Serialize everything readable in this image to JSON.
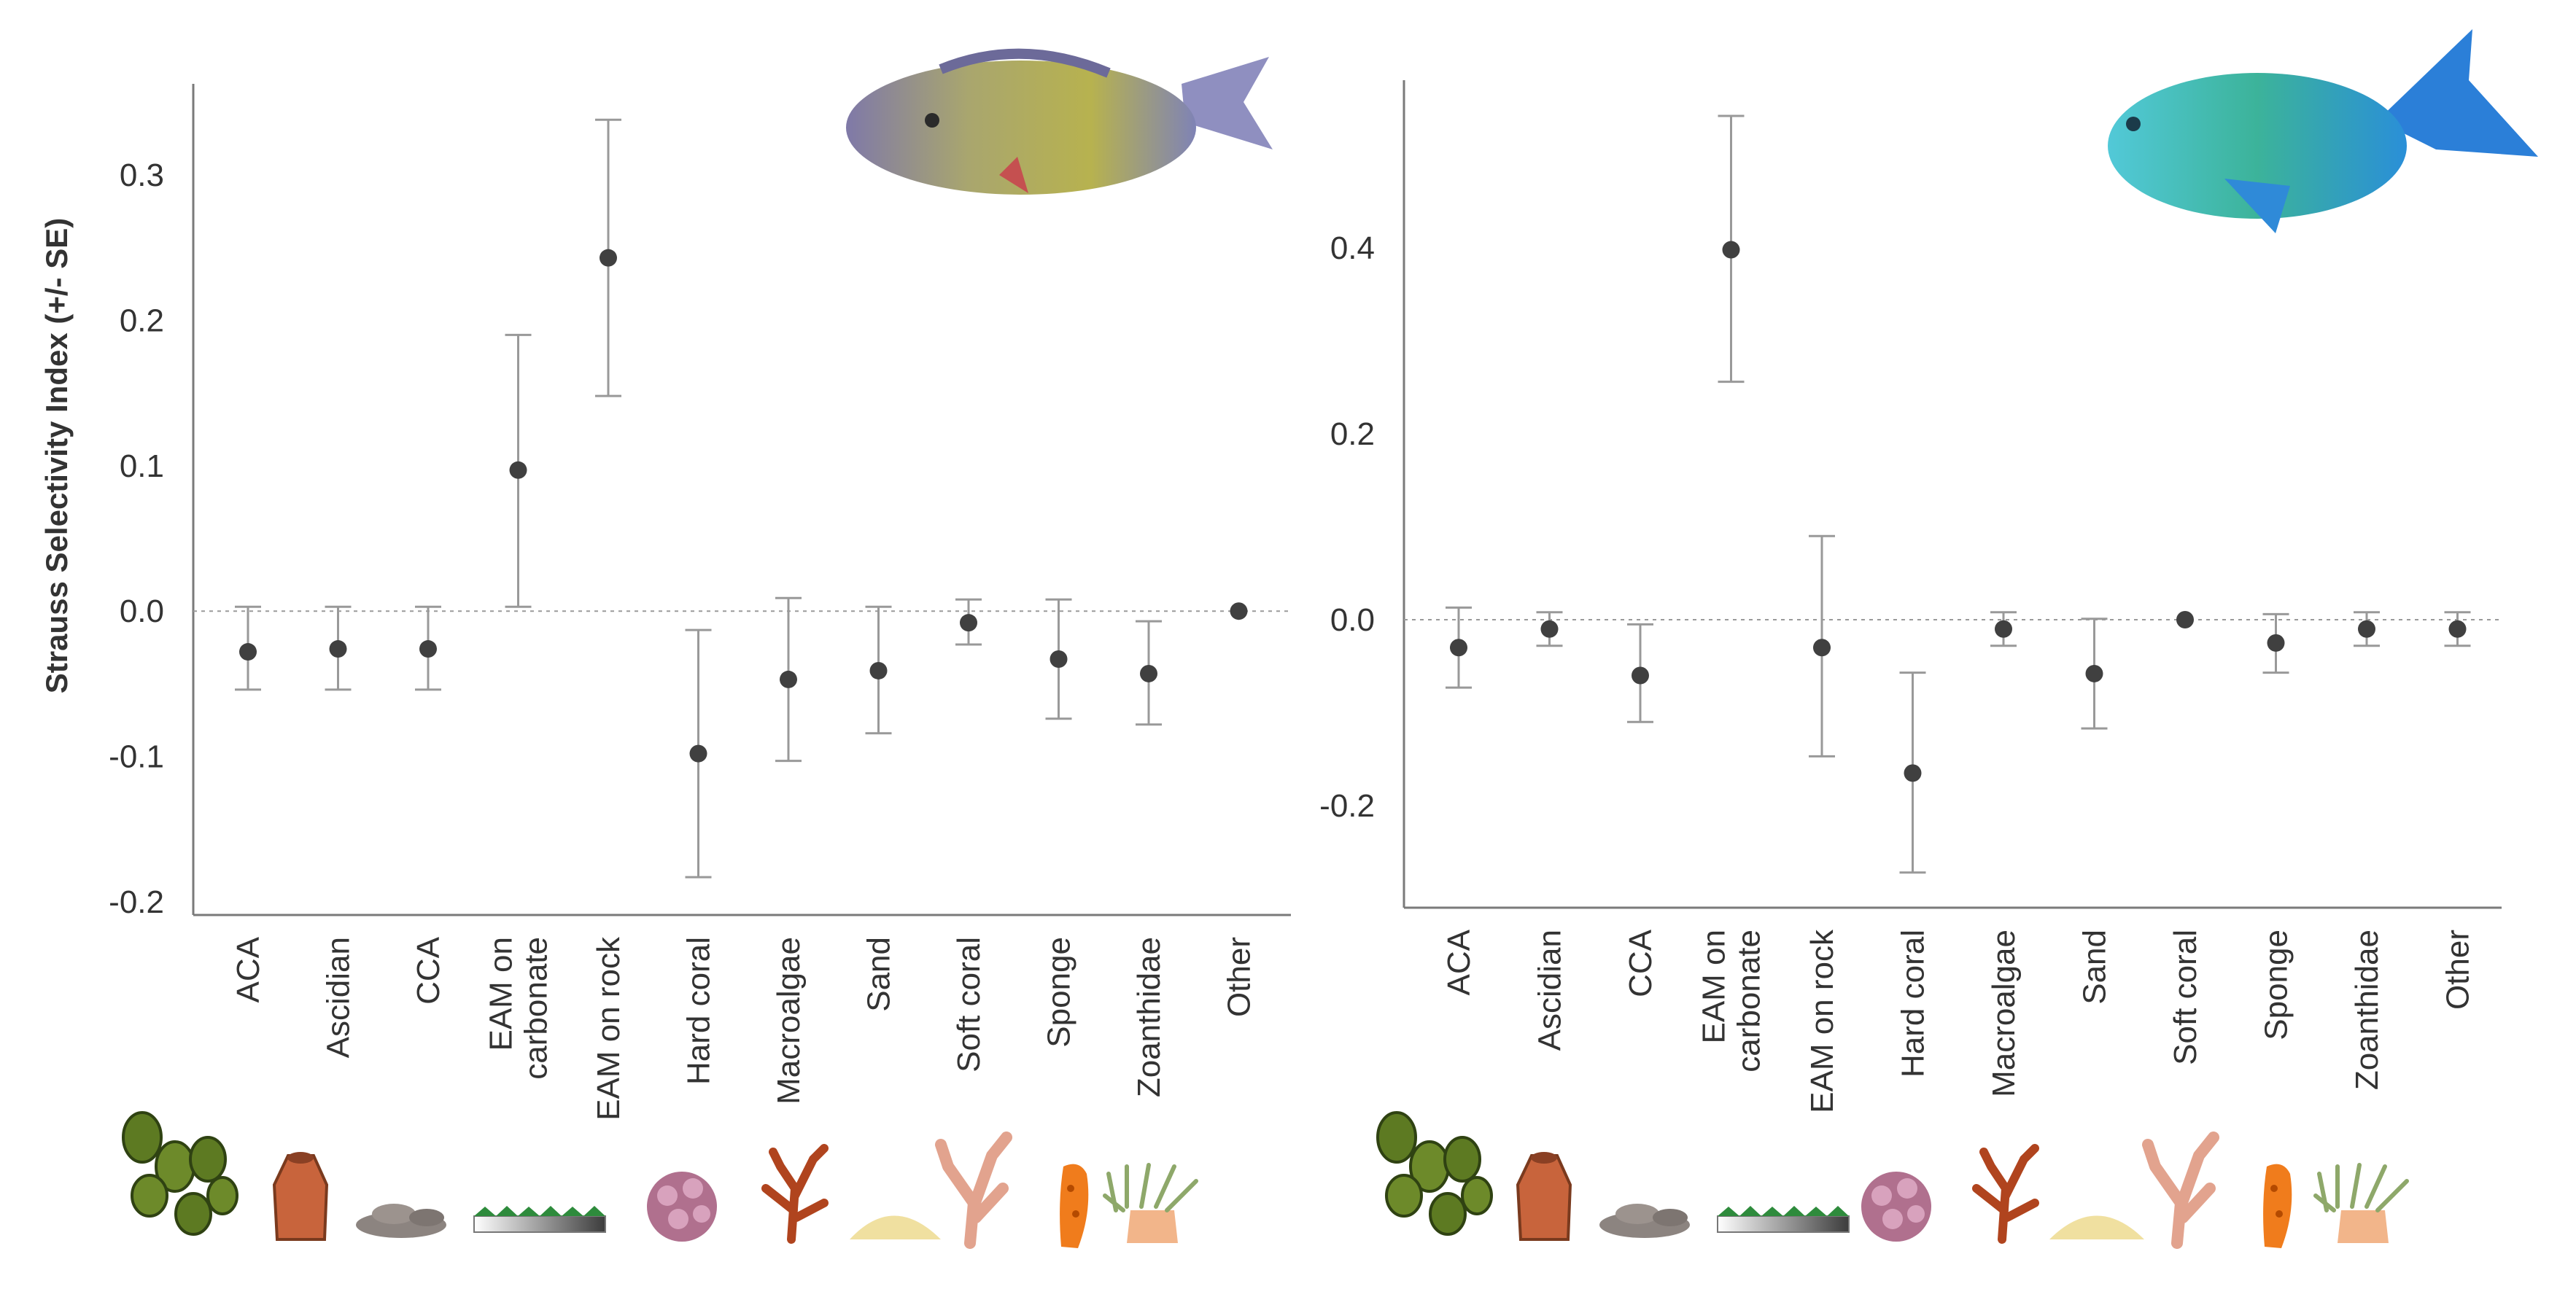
{
  "chart_data": [
    {
      "type": "scatter",
      "ylabel": "Strauss Selectivity Index (+/- SE)",
      "xlabel": "",
      "ylim": [
        -0.2,
        0.35
      ],
      "yticks": [
        0.3,
        0.2,
        0.1,
        0.0,
        -0.1,
        -0.2
      ],
      "ytick_labels": [
        "0.3",
        "0.2",
        "0.1",
        "0.0",
        "-0.1",
        "-0.2"
      ],
      "categories": [
        "ACA",
        "Ascidian",
        "CCA",
        "EAM on carbonate",
        "EAM on rock",
        "Hard coral",
        "Macroalgae",
        "Sand",
        "Soft coral",
        "Sponge",
        "Zoanthidae",
        "Other"
      ],
      "category_labels": [
        [
          "ACA"
        ],
        [
          "Ascidian"
        ],
        [
          "CCA"
        ],
        [
          "EAM on",
          "carbonate"
        ],
        [
          "EAM on rock"
        ],
        [
          "Hard coral"
        ],
        [
          "Macroalgae"
        ],
        [
          "Sand"
        ],
        [
          "Soft coral"
        ],
        [
          "Sponge"
        ],
        [
          "Zoanthidae"
        ],
        [
          "Other"
        ]
      ],
      "values": [
        -0.028,
        -0.026,
        -0.026,
        0.097,
        0.243,
        -0.098,
        -0.047,
        -0.041,
        -0.008,
        -0.033,
        -0.043,
        0.0
      ],
      "upper": [
        0.003,
        0.003,
        0.003,
        0.19,
        0.338,
        -0.013,
        0.009,
        0.003,
        0.008,
        0.008,
        -0.007,
        0.0
      ],
      "lower": [
        -0.054,
        -0.054,
        -0.054,
        0.003,
        0.148,
        -0.183,
        -0.103,
        -0.084,
        -0.023,
        -0.074,
        -0.078,
        0.0
      ],
      "zero_line": "dotted",
      "grid": false
    },
    {
      "type": "scatter",
      "ylabel": "",
      "xlabel": "",
      "ylim": [
        -0.27,
        0.54
      ],
      "yticks": [
        0.4,
        0.2,
        0.0,
        -0.2
      ],
      "ytick_labels": [
        "0.4",
        "0.2",
        "0.0",
        "-0.2"
      ],
      "categories": [
        "ACA",
        "Ascidian",
        "CCA",
        "EAM on carbonate",
        "EAM on rock",
        "Hard coral",
        "Macroalgae",
        "Sand",
        "Soft coral",
        "Sponge",
        "Zoanthidae",
        "Other"
      ],
      "category_labels": [
        [
          "ACA"
        ],
        [
          "Ascidian"
        ],
        [
          "CCA"
        ],
        [
          "EAM on",
          "carbonate"
        ],
        [
          "EAM on rock"
        ],
        [
          "Hard coral"
        ],
        [
          "Macroalgae"
        ],
        [
          "Sand"
        ],
        [
          "Soft coral"
        ],
        [
          "Sponge"
        ],
        [
          "Zoanthidae"
        ],
        [
          "Other"
        ]
      ],
      "values": [
        -0.03,
        -0.01,
        -0.06,
        0.398,
        -0.03,
        -0.165,
        -0.01,
        -0.058,
        0.0,
        -0.025,
        -0.01,
        -0.01
      ],
      "upper": [
        0.013,
        0.008,
        -0.005,
        0.542,
        0.09,
        -0.057,
        0.008,
        0.001,
        0.0,
        0.006,
        0.008,
        0.008
      ],
      "lower": [
        -0.073,
        -0.028,
        -0.11,
        0.256,
        -0.147,
        -0.272,
        -0.028,
        -0.117,
        0.0,
        -0.057,
        -0.028,
        -0.028
      ],
      "zero_line": "dotted",
      "grid": false
    }
  ],
  "icons": [
    "green-macroalgae-icon",
    "ascidian-icon",
    "cca-rubble-icon",
    "eam-turf-icon",
    "hard-coral-icon",
    "red-macroalgae-icon",
    "sand-icon",
    "soft-coral-icon",
    "sponge-icon",
    "zoanthid-icon"
  ],
  "colors": {
    "point": "#404040",
    "errorbar": "#999999",
    "axis": "#7a7a7a",
    "fish1_body": "#a8a470",
    "fish2_body": "#3fb6c8"
  }
}
